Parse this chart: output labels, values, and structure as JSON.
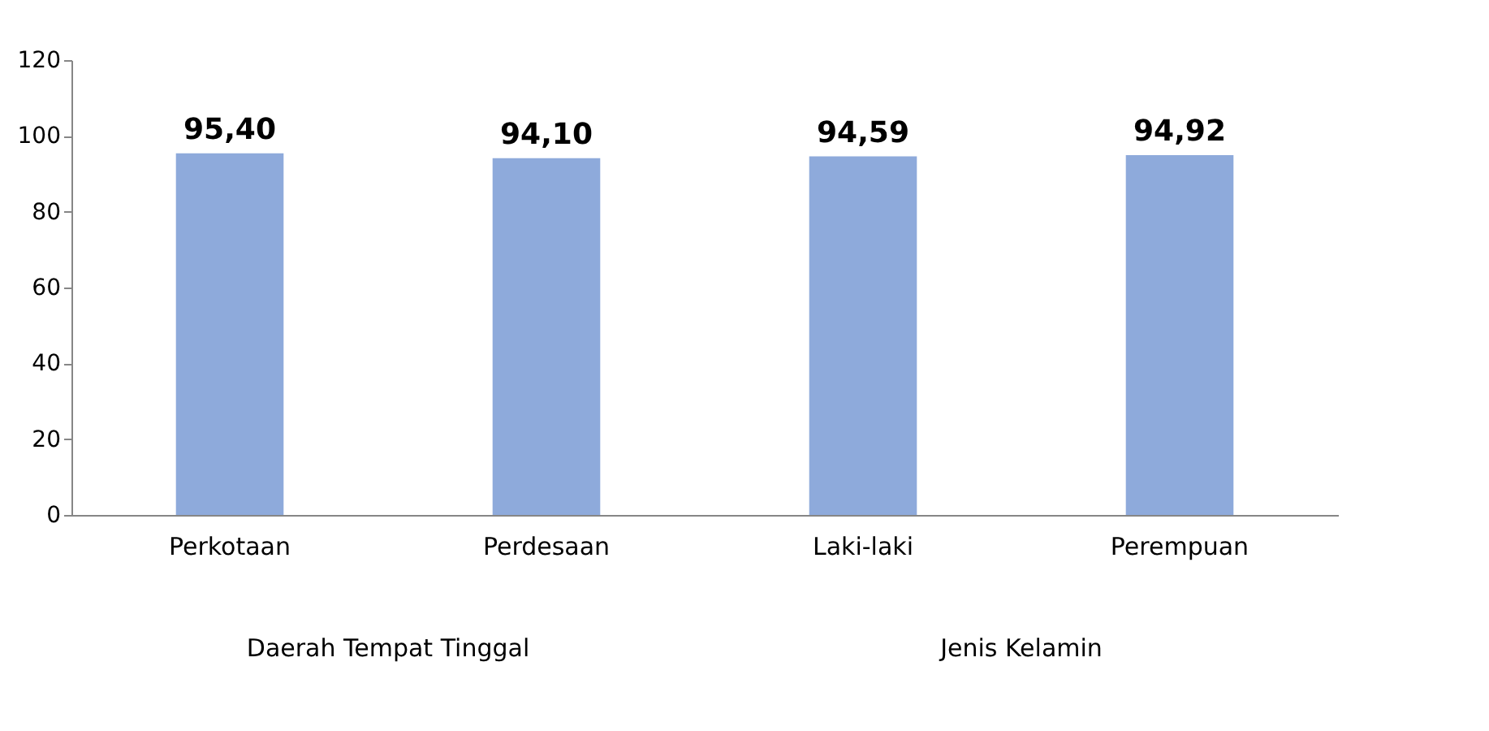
{
  "chart_data": {
    "type": "bar",
    "categories": [
      "Perkotaan",
      "Perdesaan",
      "Laki-laki",
      "Perempuan"
    ],
    "values": [
      95.4,
      94.1,
      94.59,
      94.92
    ],
    "value_labels": [
      "95,40",
      "94,10",
      "94,59",
      "94,92"
    ],
    "color": "#8eaadb",
    "ylim": [
      0,
      120
    ],
    "yticks": [
      0,
      20,
      40,
      60,
      80,
      100,
      120
    ],
    "grid": false,
    "annotations": [
      "Daerah Tempat Tinggal",
      "Jenis Kelamin"
    ]
  }
}
